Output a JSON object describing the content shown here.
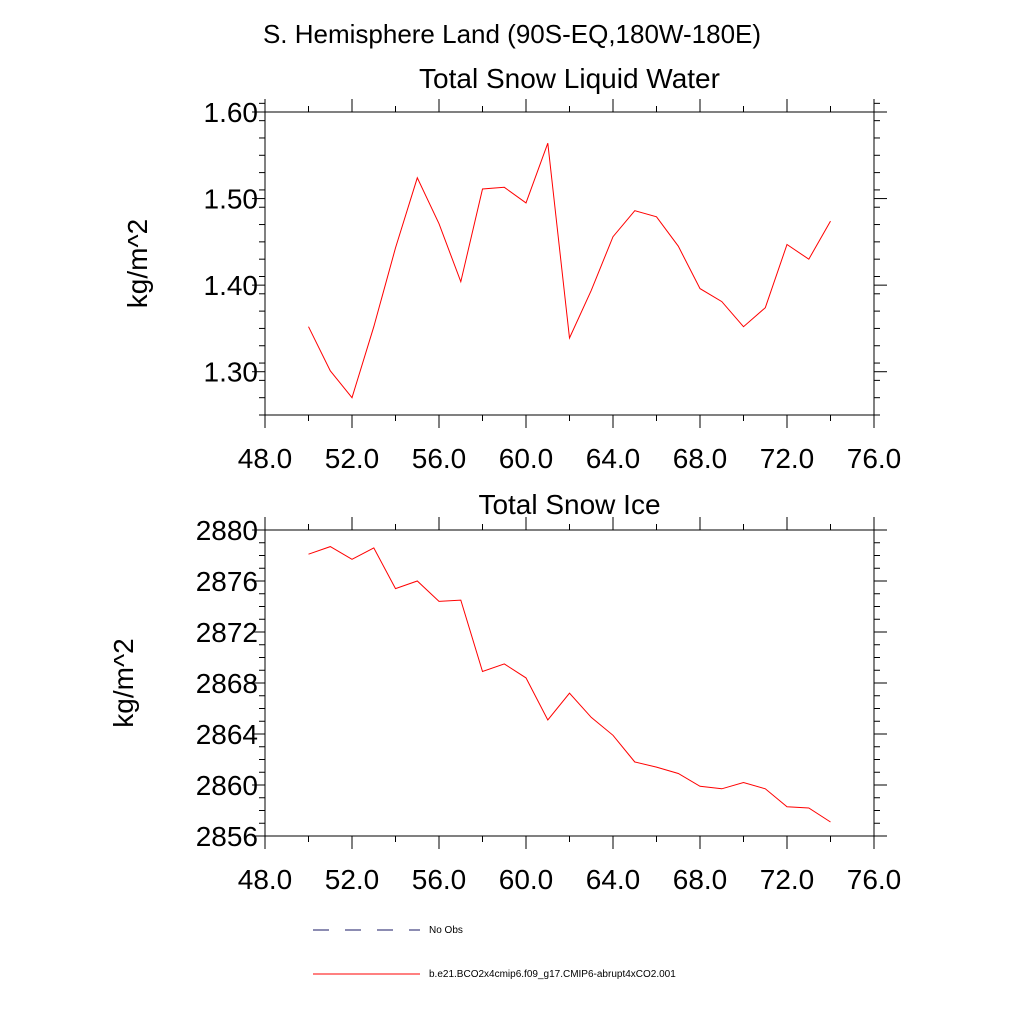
{
  "figure_title": "S. Hemisphere Land (90S-EQ,180W-180E)",
  "legend": [
    {
      "label": "No Obs",
      "style": "dashed",
      "color": "#1a1a66"
    },
    {
      "label": "b.e21.BCO2x4cmip6.f09_g17.CMIP6-abrupt4xCO2.001",
      "style": "solid",
      "color": "#ff0000"
    }
  ],
  "chart_data": [
    {
      "type": "line",
      "title": "Total Snow Liquid Water",
      "xlabel": "",
      "ylabel": "kg/m^2",
      "xlim": [
        48,
        76
      ],
      "ylim": [
        1.25,
        1.6
      ],
      "xticks": [
        48,
        52,
        56,
        60,
        64,
        68,
        72,
        76
      ],
      "xtick_labels": [
        "48.0",
        "52.0",
        "56.0",
        "60.0",
        "64.0",
        "68.0",
        "72.0",
        "76.0"
      ],
      "xminor_step": 2,
      "yticks": [
        1.3,
        1.4,
        1.5,
        1.6
      ],
      "ytick_labels": [
        "1.30",
        "1.40",
        "1.50",
        "1.60"
      ],
      "yminor_step": 0.02,
      "grid": false,
      "series": [
        {
          "color": "#ff0000",
          "x": [
            50,
            51,
            52,
            53,
            54,
            55,
            56,
            57,
            58,
            59,
            60,
            61,
            62,
            63,
            64,
            65,
            66,
            67,
            68,
            69,
            70,
            71,
            72,
            73,
            74
          ],
          "y": [
            1.352,
            1.301,
            1.27,
            1.352,
            1.443,
            1.524,
            1.471,
            1.404,
            1.511,
            1.513,
            1.495,
            1.564,
            1.339,
            1.394,
            1.456,
            1.486,
            1.479,
            1.445,
            1.396,
            1.381,
            1.352,
            1.374,
            1.447,
            1.43,
            1.474
          ]
        }
      ]
    },
    {
      "type": "line",
      "title": "Total Snow Ice",
      "xlabel": "",
      "ylabel": "kg/m^2",
      "xlim": [
        48,
        76
      ],
      "ylim": [
        2856,
        2880
      ],
      "xticks": [
        48,
        52,
        56,
        60,
        64,
        68,
        72,
        76
      ],
      "xtick_labels": [
        "48.0",
        "52.0",
        "56.0",
        "60.0",
        "64.0",
        "68.0",
        "72.0",
        "76.0"
      ],
      "xminor_step": 2,
      "yticks": [
        2856,
        2860,
        2864,
        2868,
        2872,
        2876,
        2880
      ],
      "ytick_labels": [
        "2856",
        "2860",
        "2864",
        "2868",
        "2872",
        "2876",
        "2880"
      ],
      "yminor_step": 1,
      "grid": false,
      "series": [
        {
          "color": "#ff0000",
          "x": [
            50,
            51,
            52,
            53,
            54,
            55,
            56,
            57,
            58,
            59,
            60,
            61,
            62,
            63,
            64,
            65,
            66,
            67,
            68,
            69,
            70,
            71,
            72,
            73,
            74
          ],
          "y": [
            2878.1,
            2878.7,
            2877.7,
            2878.6,
            2875.4,
            2876.0,
            2874.4,
            2874.5,
            2868.9,
            2869.5,
            2868.4,
            2865.1,
            2867.2,
            2865.3,
            2863.9,
            2861.8,
            2861.4,
            2860.9,
            2859.9,
            2859.7,
            2860.2,
            2859.7,
            2858.3,
            2858.2,
            2857.1
          ]
        }
      ]
    }
  ]
}
